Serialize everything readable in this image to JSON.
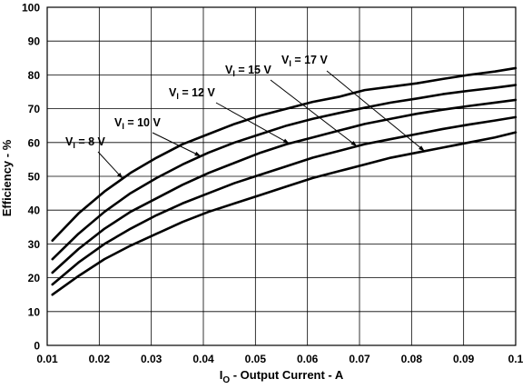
{
  "chart_data": {
    "type": "line",
    "xlabel": {
      "main": "I",
      "sub": "O",
      "rest": " - Output Current - A"
    },
    "ylabel": "Efficiency - %",
    "xlim": [
      0.01,
      0.1
    ],
    "ylim": [
      0,
      100
    ],
    "x_ticks": [
      "0.01",
      "0.02",
      "0.03",
      "0.04",
      "0.05",
      "0.06",
      "0.07",
      "0.08",
      "0.09",
      "0.1"
    ],
    "y_ticks": [
      "0",
      "10",
      "20",
      "30",
      "40",
      "50",
      "60",
      "70",
      "80",
      "90",
      "100"
    ],
    "grid": true,
    "x": [
      0.011,
      0.016,
      0.021,
      0.026,
      0.031,
      0.036,
      0.041,
      0.046,
      0.051,
      0.056,
      0.061,
      0.066,
      0.071,
      0.076,
      0.081,
      0.086,
      0.091,
      0.096,
      0.1
    ],
    "series": [
      {
        "label_main": "V",
        "label_sub": "I",
        "label_rest": " = 8 V",
        "values": [
          31,
          39,
          45.5,
          51,
          55.5,
          59.5,
          62.5,
          65.5,
          68,
          70,
          72,
          73.5,
          75.5,
          76.5,
          77.5,
          78.8,
          80,
          81,
          82
        ]
      },
      {
        "label_main": "V",
        "label_sub": "I",
        "label_rest": " = 10 V",
        "values": [
          25.5,
          33,
          39.5,
          45,
          49.5,
          53.5,
          57,
          60,
          62.5,
          65,
          67,
          68.7,
          70.3,
          71.8,
          73,
          74.3,
          75.3,
          76.2,
          77
        ]
      },
      {
        "label_main": "V",
        "label_sub": "I",
        "label_rest": " = 12 V",
        "values": [
          21.5,
          28.5,
          34.5,
          39.5,
          43.5,
          47.5,
          51,
          54,
          57,
          59.5,
          61.5,
          63.5,
          65.5,
          67,
          68.5,
          69.7,
          70.8,
          71.8,
          72.6
        ]
      },
      {
        "label_main": "V",
        "label_sub": "I",
        "label_rest": " = 15 V",
        "values": [
          18,
          24.5,
          30,
          34.5,
          38.5,
          42,
          45,
          48,
          50.5,
          53,
          55.5,
          57.5,
          59.5,
          61,
          62.5,
          64,
          65.3,
          66.5,
          67.5
        ]
      },
      {
        "label_main": "V",
        "label_sub": "I",
        "label_rest": " = 17 V",
        "values": [
          15,
          20.5,
          25.5,
          29.5,
          33,
          36.5,
          39.5,
          42,
          44.5,
          47,
          49.5,
          51.5,
          53.5,
          55.5,
          57,
          58.5,
          60,
          61.5,
          63
        ]
      }
    ]
  }
}
